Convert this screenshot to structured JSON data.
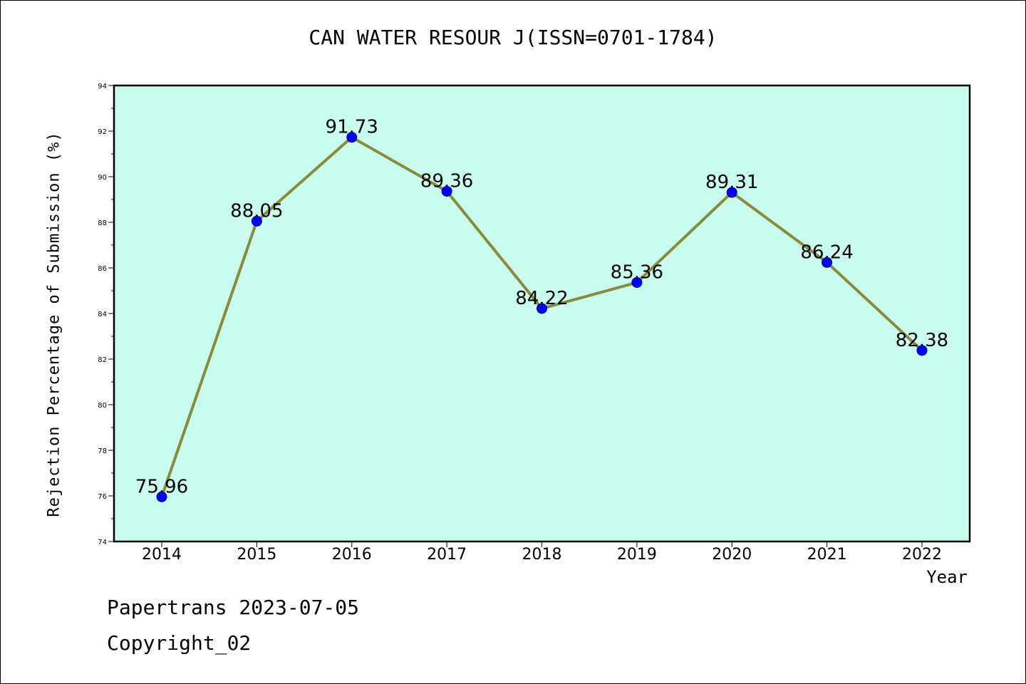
{
  "title": "CAN WATER RESOUR J(ISSN=0701-1784)",
  "footer": {
    "line1": "Papertrans 2023-07-05",
    "line2": "Copyright_02"
  },
  "colors": {
    "plot_background": "#c8fcee",
    "line": "#8b8b3a",
    "marker": "#0000ff"
  },
  "chart_data": {
    "type": "line",
    "title": "CAN WATER RESOUR J(ISSN=0701-1784)",
    "xlabel": "Year",
    "ylabel": "Rejection Percentage of Submission (%)",
    "categories": [
      "2014",
      "2015",
      "2016",
      "2017",
      "2018",
      "2019",
      "2020",
      "2021",
      "2022"
    ],
    "values": [
      75.96,
      88.05,
      91.73,
      89.36,
      84.22,
      85.36,
      89.31,
      86.24,
      82.38
    ],
    "data_labels": [
      "75.96",
      "88.05",
      "91.73",
      "89.36",
      "84.22",
      "85.36",
      "89.31",
      "86.24",
      "82.38"
    ],
    "ylim": [
      74,
      94
    ],
    "yticks": [
      "74",
      "76",
      "78",
      "80",
      "82",
      "84",
      "86",
      "88",
      "90",
      "92",
      "94"
    ],
    "grid": false,
    "legend": "none"
  }
}
